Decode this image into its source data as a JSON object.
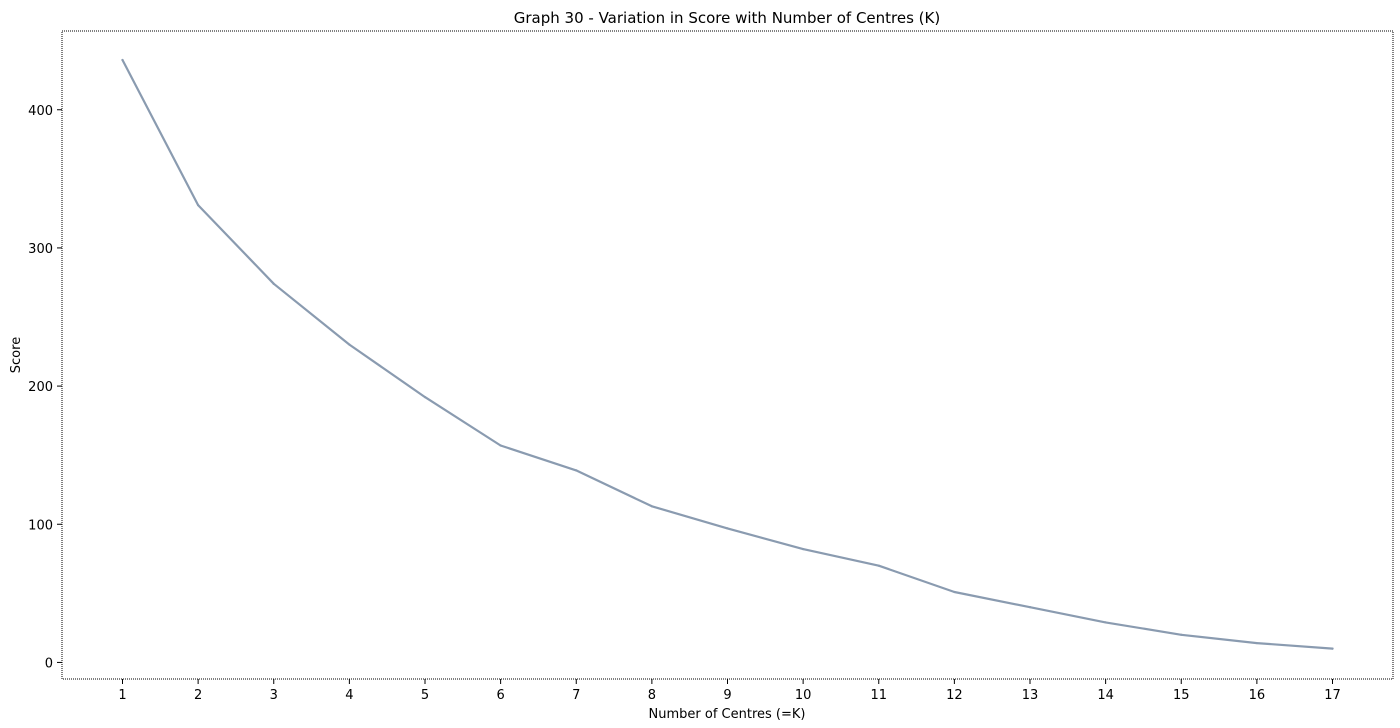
{
  "chart_data": {
    "type": "line",
    "title": "Graph 30 - Variation in Score with Number of Centres (K)",
    "xlabel": "Number of Centres (=K)",
    "ylabel": "Score",
    "x": [
      1,
      2,
      3,
      4,
      5,
      6,
      7,
      8,
      9,
      10,
      11,
      12,
      13,
      14,
      15,
      16,
      17
    ],
    "series": [
      {
        "values": [
          436,
          331,
          274,
          230,
          192,
          157,
          139,
          113,
          97,
          82,
          70,
          51,
          40,
          29,
          20,
          14,
          10
        ]
      }
    ],
    "xticks": [
      "1",
      "2",
      "3",
      "4",
      "5",
      "6",
      "7",
      "8",
      "9",
      "10",
      "11",
      "12",
      "13",
      "14",
      "15",
      "16",
      "17"
    ],
    "yticks": [
      0,
      100,
      200,
      300,
      400
    ],
    "xlim": [
      0.2,
      17.8
    ],
    "ylim": [
      -12,
      457
    ],
    "grid": false,
    "line_color": "#8a9bb0"
  }
}
